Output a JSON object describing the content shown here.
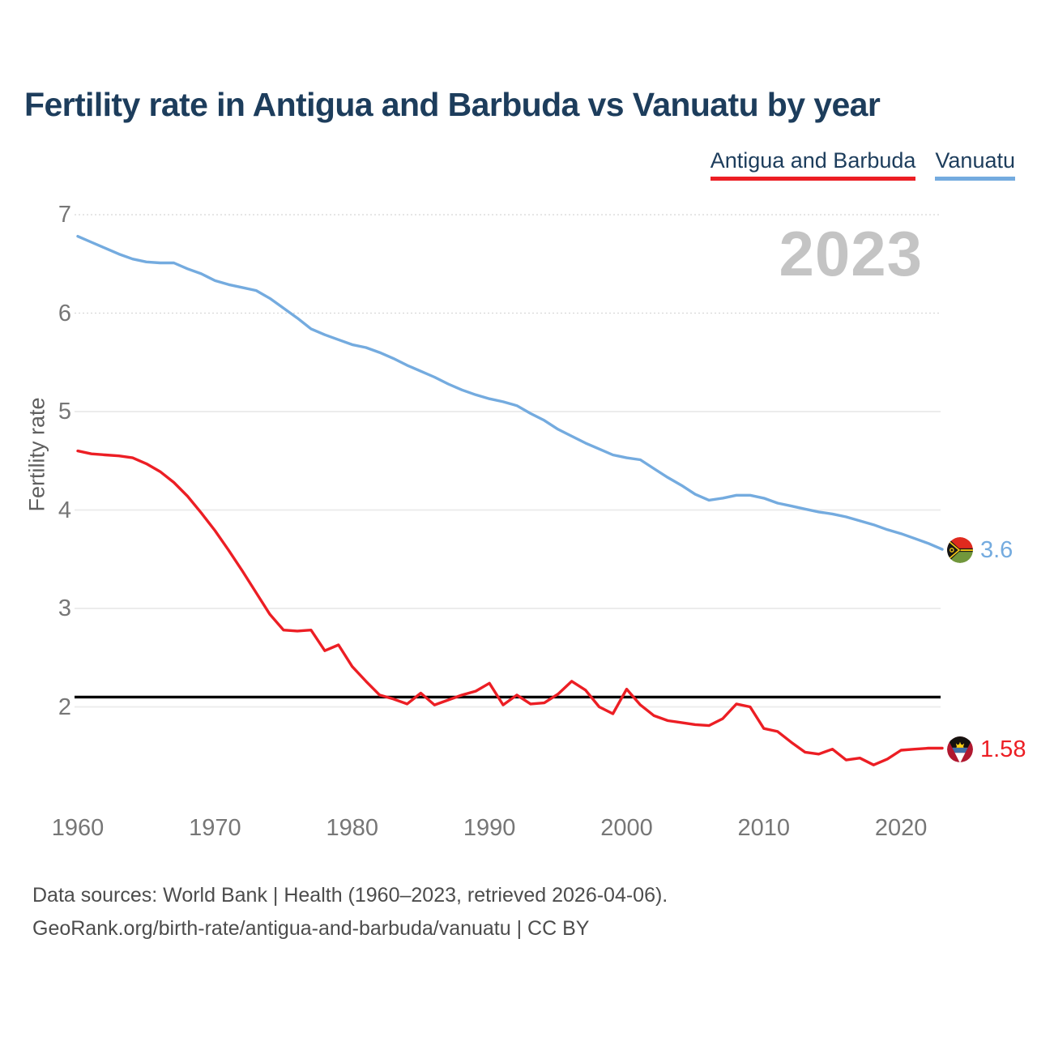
{
  "page": {
    "title": "Fertility rate in Antigua and Barbuda vs Vanuatu by year",
    "watermark_year": "2023"
  },
  "legend": {
    "items": [
      {
        "label": "Antigua and Barbuda",
        "color": "#ec1e24"
      },
      {
        "label": "Vanuatu",
        "color": "#74abdf"
      }
    ]
  },
  "footer": {
    "sources_line": "Data sources: World Bank | Health (1960–2023, retrieved 2026-04-06).",
    "attribution_line": "GeoRank.org/birth-rate/antigua-and-barbuda/vanuatu | CC BY"
  },
  "chart_data": {
    "type": "line",
    "title": "Fertility rate in Antigua and Barbuda vs Vanuatu by year",
    "xlabel": "",
    "ylabel": "Fertility rate",
    "grid": "horizontal",
    "legend_position": "top-right",
    "x_ticks": [
      1960,
      1970,
      1980,
      1990,
      2000,
      2010,
      2020
    ],
    "y_ticks": [
      7,
      6,
      5,
      4,
      3,
      2
    ],
    "xlim": [
      1960,
      2023
    ],
    "ylim": [
      1.3,
      7.2
    ],
    "reference_line": {
      "value": 2.1,
      "color": "#000000"
    },
    "x": [
      1960,
      1961,
      1962,
      1963,
      1964,
      1965,
      1966,
      1967,
      1968,
      1969,
      1970,
      1971,
      1972,
      1973,
      1974,
      1975,
      1976,
      1977,
      1978,
      1979,
      1980,
      1981,
      1982,
      1983,
      1984,
      1985,
      1986,
      1987,
      1988,
      1989,
      1990,
      1991,
      1992,
      1993,
      1994,
      1995,
      1996,
      1997,
      1998,
      1999,
      2000,
      2001,
      2002,
      2003,
      2004,
      2005,
      2006,
      2007,
      2008,
      2009,
      2010,
      2011,
      2012,
      2013,
      2014,
      2015,
      2016,
      2017,
      2018,
      2019,
      2020,
      2021,
      2022,
      2023
    ],
    "series": [
      {
        "name": "Antigua and Barbuda",
        "color": "#ec1e24",
        "end_label": "1.58",
        "flag": "antigua-and-barbuda",
        "values": [
          4.6,
          4.57,
          4.56,
          4.55,
          4.53,
          4.47,
          4.39,
          4.28,
          4.14,
          3.97,
          3.79,
          3.59,
          3.38,
          3.16,
          2.94,
          2.78,
          2.77,
          2.78,
          2.57,
          2.63,
          2.41,
          2.26,
          2.12,
          2.08,
          2.03,
          2.14,
          2.02,
          2.07,
          2.12,
          2.16,
          2.24,
          2.02,
          2.12,
          2.03,
          2.04,
          2.13,
          2.26,
          2.17,
          2.0,
          1.93,
          2.18,
          2.02,
          1.91,
          1.86,
          1.84,
          1.82,
          1.81,
          1.88,
          2.03,
          2.0,
          1.78,
          1.75,
          1.64,
          1.54,
          1.52,
          1.57,
          1.46,
          1.48,
          1.41,
          1.47,
          1.56,
          1.57,
          1.58,
          1.58
        ]
      },
      {
        "name": "Vanuatu",
        "color": "#74abdf",
        "end_label": "3.6",
        "flag": "vanuatu",
        "values": [
          6.78,
          6.72,
          6.66,
          6.6,
          6.55,
          6.52,
          6.51,
          6.51,
          6.45,
          6.4,
          6.33,
          6.29,
          6.26,
          6.23,
          6.15,
          6.05,
          5.95,
          5.84,
          5.78,
          5.73,
          5.68,
          5.65,
          5.6,
          5.54,
          5.47,
          5.41,
          5.35,
          5.28,
          5.22,
          5.17,
          5.13,
          5.1,
          5.06,
          4.98,
          4.91,
          4.82,
          4.75,
          4.68,
          4.62,
          4.56,
          4.53,
          4.51,
          4.42,
          4.33,
          4.25,
          4.16,
          4.1,
          4.12,
          4.15,
          4.15,
          4.12,
          4.07,
          4.04,
          4.01,
          3.98,
          3.96,
          3.93,
          3.89,
          3.85,
          3.8,
          3.76,
          3.71,
          3.66,
          3.6
        ]
      }
    ]
  }
}
